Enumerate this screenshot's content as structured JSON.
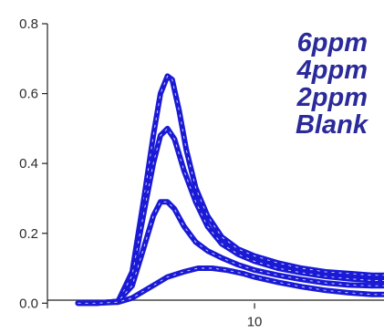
{
  "chart_data": {
    "type": "line",
    "title": "",
    "xlabel": "",
    "ylabel": "",
    "xlim": [
      1.2,
      15.5
    ],
    "ylim": [
      -0.02,
      0.8
    ],
    "x_ticks": [
      {
        "value": 10,
        "label": "10"
      }
    ],
    "y_ticks": [
      {
        "value": 0.0,
        "label": "0.0"
      },
      {
        "value": 0.2,
        "label": "0.2"
      },
      {
        "value": 0.4,
        "label": "0.4"
      },
      {
        "value": 0.6,
        "label": "0.6"
      },
      {
        "value": 0.8,
        "label": "0.8"
      }
    ],
    "grid": false,
    "legend_position": "top-right",
    "series_color": "#1a1ad6",
    "label_color": "#2a2a9a",
    "legend": [
      "6ppm",
      "4ppm",
      "2ppm",
      "Blank"
    ],
    "series": [
      {
        "name": "6ppm",
        "x": [
          2.5,
          3.3,
          4.2,
          4.8,
          5.3,
          5.7,
          6.0,
          6.3,
          6.5,
          6.8,
          7.1,
          7.5,
          8.0,
          8.6,
          9.3,
          10.0,
          11.0,
          12.0,
          13.0,
          14.0,
          15.0,
          15.5
        ],
        "y": [
          0.0,
          0.0,
          0.005,
          0.09,
          0.3,
          0.48,
          0.6,
          0.65,
          0.64,
          0.55,
          0.44,
          0.33,
          0.25,
          0.19,
          0.155,
          0.135,
          0.115,
          0.1,
          0.09,
          0.085,
          0.08,
          0.08
        ]
      },
      {
        "name": "4ppm",
        "x": [
          2.5,
          3.3,
          4.2,
          4.8,
          5.3,
          5.7,
          6.0,
          6.3,
          6.6,
          7.0,
          7.5,
          8.0,
          8.6,
          9.3,
          10.0,
          11.0,
          12.0,
          13.0,
          14.0,
          15.0,
          15.5
        ],
        "y": [
          0.0,
          0.0,
          0.005,
          0.08,
          0.26,
          0.4,
          0.48,
          0.5,
          0.47,
          0.38,
          0.29,
          0.22,
          0.17,
          0.14,
          0.12,
          0.1,
          0.087,
          0.077,
          0.07,
          0.065,
          0.065
        ]
      },
      {
        "name": "2ppm",
        "x": [
          2.5,
          3.3,
          4.2,
          4.8,
          5.3,
          5.7,
          6.0,
          6.3,
          6.6,
          7.0,
          7.5,
          8.0,
          8.6,
          9.3,
          10.0,
          11.0,
          12.0,
          13.0,
          14.0,
          15.0,
          15.5
        ],
        "y": [
          0.0,
          0.0,
          0.005,
          0.05,
          0.16,
          0.25,
          0.29,
          0.29,
          0.27,
          0.22,
          0.175,
          0.15,
          0.13,
          0.11,
          0.095,
          0.08,
          0.068,
          0.058,
          0.052,
          0.05,
          0.05
        ]
      },
      {
        "name": "Blank",
        "x": [
          2.5,
          3.3,
          4.2,
          4.8,
          5.3,
          5.8,
          6.3,
          7.0,
          7.6,
          8.2,
          8.8,
          9.5,
          10.0,
          11.0,
          12.0,
          13.0,
          14.0,
          15.0,
          15.5
        ],
        "y": [
          0.0,
          0.0,
          0.003,
          0.015,
          0.035,
          0.055,
          0.075,
          0.09,
          0.1,
          0.1,
          0.095,
          0.085,
          0.075,
          0.06,
          0.047,
          0.037,
          0.03,
          0.025,
          0.025
        ]
      }
    ]
  }
}
